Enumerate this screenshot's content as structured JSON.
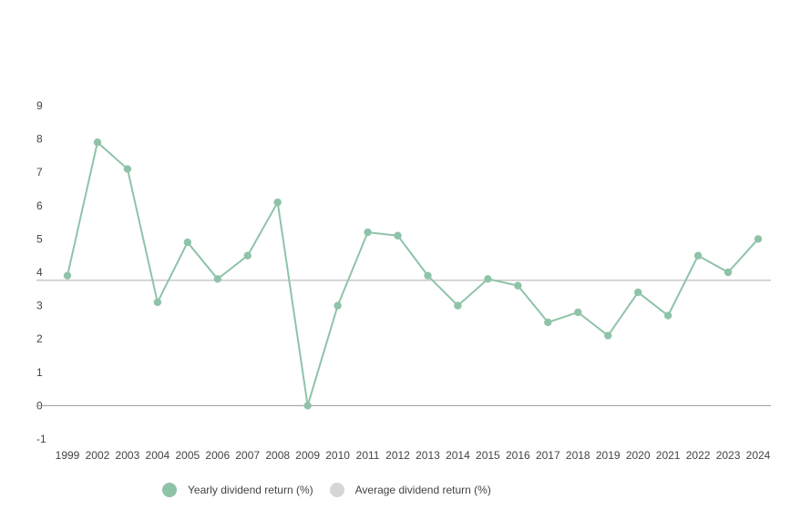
{
  "chart_data": {
    "type": "line",
    "x": [
      "1999",
      "2002",
      "2003",
      "2004",
      "2005",
      "2006",
      "2007",
      "2008",
      "2009",
      "2010",
      "2011",
      "2012",
      "2013",
      "2014",
      "2015",
      "2016",
      "2017",
      "2018",
      "2019",
      "2020",
      "2021",
      "2022",
      "2023",
      "2024"
    ],
    "series": [
      {
        "name": "Yearly dividend return (%)",
        "color": "#8fc3a8",
        "values": [
          3.9,
          7.9,
          7.1,
          3.1,
          4.9,
          3.8,
          4.5,
          6.1,
          0.0,
          3.0,
          5.2,
          5.1,
          3.9,
          3.0,
          3.8,
          3.6,
          2.5,
          2.8,
          2.1,
          3.4,
          2.7,
          4.5,
          4.0,
          5.0
        ]
      },
      {
        "name": "Average dividend return (%)",
        "color": "#d6d6d6",
        "values": [
          3.76,
          3.76,
          3.76,
          3.76,
          3.76,
          3.76,
          3.76,
          3.76,
          3.76,
          3.76,
          3.76,
          3.76,
          3.76,
          3.76,
          3.76,
          3.76,
          3.76,
          3.76,
          3.76,
          3.76,
          3.76,
          3.76,
          3.76,
          3.76
        ]
      }
    ],
    "yticks": [
      -1,
      0,
      1,
      2,
      3,
      4,
      5,
      6,
      7,
      8,
      9
    ],
    "ylim": [
      -1,
      9
    ],
    "title": "",
    "xlabel": "",
    "ylabel": "",
    "legend_position": "bottom-left",
    "grid": false
  }
}
